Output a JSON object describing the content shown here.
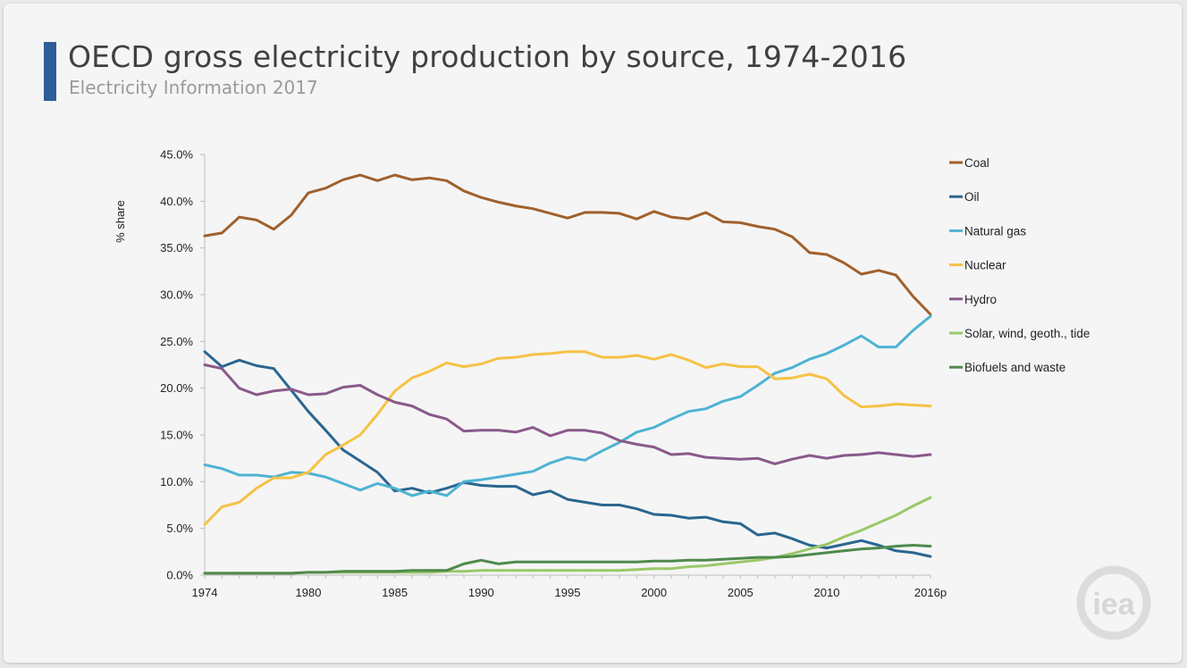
{
  "header": {
    "title": "OECD gross electricity production by source, 1974-2016",
    "subtitle": "Electricity Information 2017"
  },
  "logo": {
    "text": "iea"
  },
  "colors": {
    "Coal": "#a0612d",
    "Oil": "#2a6690",
    "Natural gas": "#4eb3d3",
    "Nuclear": "#f6c245",
    "Hydro": "#8a5a8a",
    "Solar, wind, geoth., tide": "#9ac86a",
    "Biofuels and waste": "#4f8a4c"
  },
  "chart_data": {
    "type": "line",
    "ylabel": "% share",
    "ylim": [
      0,
      45
    ],
    "yticks": [
      "0.0%",
      "5.0%",
      "10.0%",
      "15.0%",
      "20.0%",
      "25.0%",
      "30.0%",
      "35.0%",
      "40.0%",
      "45.0%"
    ],
    "xticks": [
      "1974",
      "1980",
      "1985",
      "1990",
      "1995",
      "2000",
      "2005",
      "2010",
      "2016p"
    ],
    "x": [
      1974,
      1975,
      1976,
      1977,
      1978,
      1979,
      1980,
      1981,
      1982,
      1983,
      1984,
      1985,
      1986,
      1987,
      1988,
      1989,
      1990,
      1991,
      1992,
      1993,
      1994,
      1995,
      1996,
      1997,
      1998,
      1999,
      2000,
      2001,
      2002,
      2003,
      2004,
      2005,
      2006,
      2007,
      2008,
      2009,
      2010,
      2011,
      2012,
      2013,
      2014,
      2015,
      2016
    ],
    "grid": false,
    "legend": "right",
    "series": [
      {
        "name": "Coal",
        "values": [
          36.3,
          36.6,
          38.3,
          38.0,
          37.0,
          38.5,
          40.9,
          41.4,
          42.3,
          42.8,
          42.2,
          42.8,
          42.3,
          42.5,
          42.2,
          41.1,
          40.4,
          39.9,
          39.5,
          39.2,
          38.7,
          38.2,
          38.8,
          38.8,
          38.7,
          38.1,
          38.9,
          38.3,
          38.1,
          38.8,
          37.8,
          37.7,
          37.3,
          37.0,
          36.2,
          34.5,
          34.3,
          33.4,
          32.2,
          32.6,
          32.1,
          29.8,
          27.9
        ]
      },
      {
        "name": "Oil",
        "values": [
          23.9,
          22.3,
          23.0,
          22.4,
          22.1,
          19.8,
          17.5,
          15.5,
          13.4,
          12.2,
          11.0,
          9.0,
          9.3,
          8.8,
          9.3,
          9.9,
          9.6,
          9.5,
          9.5,
          8.6,
          9.0,
          8.1,
          7.8,
          7.5,
          7.5,
          7.1,
          6.5,
          6.4,
          6.1,
          6.2,
          5.7,
          5.5,
          4.3,
          4.5,
          3.9,
          3.2,
          2.9,
          3.3,
          3.7,
          3.2,
          2.6,
          2.4,
          2.0
        ]
      },
      {
        "name": "Natural gas",
        "values": [
          11.8,
          11.4,
          10.7,
          10.7,
          10.5,
          11.0,
          10.9,
          10.5,
          9.8,
          9.1,
          9.8,
          9.3,
          8.5,
          9.0,
          8.5,
          10.0,
          10.2,
          10.5,
          10.8,
          11.1,
          12.0,
          12.6,
          12.3,
          13.3,
          14.2,
          15.3,
          15.8,
          16.7,
          17.5,
          17.8,
          18.6,
          19.1,
          20.3,
          21.6,
          22.2,
          23.1,
          23.7,
          24.6,
          25.6,
          24.4,
          24.4,
          26.2,
          27.7
        ]
      },
      {
        "name": "Nuclear",
        "values": [
          5.4,
          7.3,
          7.8,
          9.3,
          10.4,
          10.4,
          11.0,
          12.9,
          13.9,
          15.0,
          17.2,
          19.7,
          21.1,
          21.8,
          22.7,
          22.3,
          22.6,
          23.2,
          23.3,
          23.6,
          23.7,
          23.9,
          23.9,
          23.3,
          23.3,
          23.5,
          23.1,
          23.6,
          23.0,
          22.2,
          22.6,
          22.3,
          22.3,
          21.0,
          21.1,
          21.5,
          21.0,
          19.2,
          18.0,
          18.1,
          18.3,
          18.2,
          18.1
        ]
      },
      {
        "name": "Hydro",
        "values": [
          22.5,
          22.1,
          20.0,
          19.3,
          19.7,
          19.9,
          19.3,
          19.4,
          20.1,
          20.3,
          19.3,
          18.5,
          18.1,
          17.2,
          16.7,
          15.4,
          15.5,
          15.5,
          15.3,
          15.8,
          14.9,
          15.5,
          15.5,
          15.2,
          14.4,
          14.0,
          13.7,
          12.9,
          13.0,
          12.6,
          12.5,
          12.4,
          12.5,
          11.9,
          12.4,
          12.8,
          12.5,
          12.8,
          12.9,
          13.1,
          12.9,
          12.7,
          12.9
        ]
      },
      {
        "name": "Solar, wind, geoth., tide",
        "values": [
          0.2,
          0.2,
          0.2,
          0.2,
          0.2,
          0.2,
          0.3,
          0.3,
          0.3,
          0.3,
          0.3,
          0.3,
          0.3,
          0.3,
          0.4,
          0.4,
          0.5,
          0.5,
          0.5,
          0.5,
          0.5,
          0.5,
          0.5,
          0.5,
          0.5,
          0.6,
          0.7,
          0.7,
          0.9,
          1.0,
          1.2,
          1.4,
          1.6,
          1.9,
          2.3,
          2.8,
          3.3,
          4.1,
          4.8,
          5.6,
          6.4,
          7.4,
          8.3
        ]
      },
      {
        "name": "Biofuels and waste",
        "values": [
          0.2,
          0.2,
          0.2,
          0.2,
          0.2,
          0.2,
          0.3,
          0.3,
          0.4,
          0.4,
          0.4,
          0.4,
          0.5,
          0.5,
          0.5,
          1.2,
          1.6,
          1.2,
          1.4,
          1.4,
          1.4,
          1.4,
          1.4,
          1.4,
          1.4,
          1.4,
          1.5,
          1.5,
          1.6,
          1.6,
          1.7,
          1.8,
          1.9,
          1.9,
          2.0,
          2.2,
          2.4,
          2.6,
          2.8,
          2.9,
          3.1,
          3.2,
          3.1
        ]
      }
    ]
  }
}
